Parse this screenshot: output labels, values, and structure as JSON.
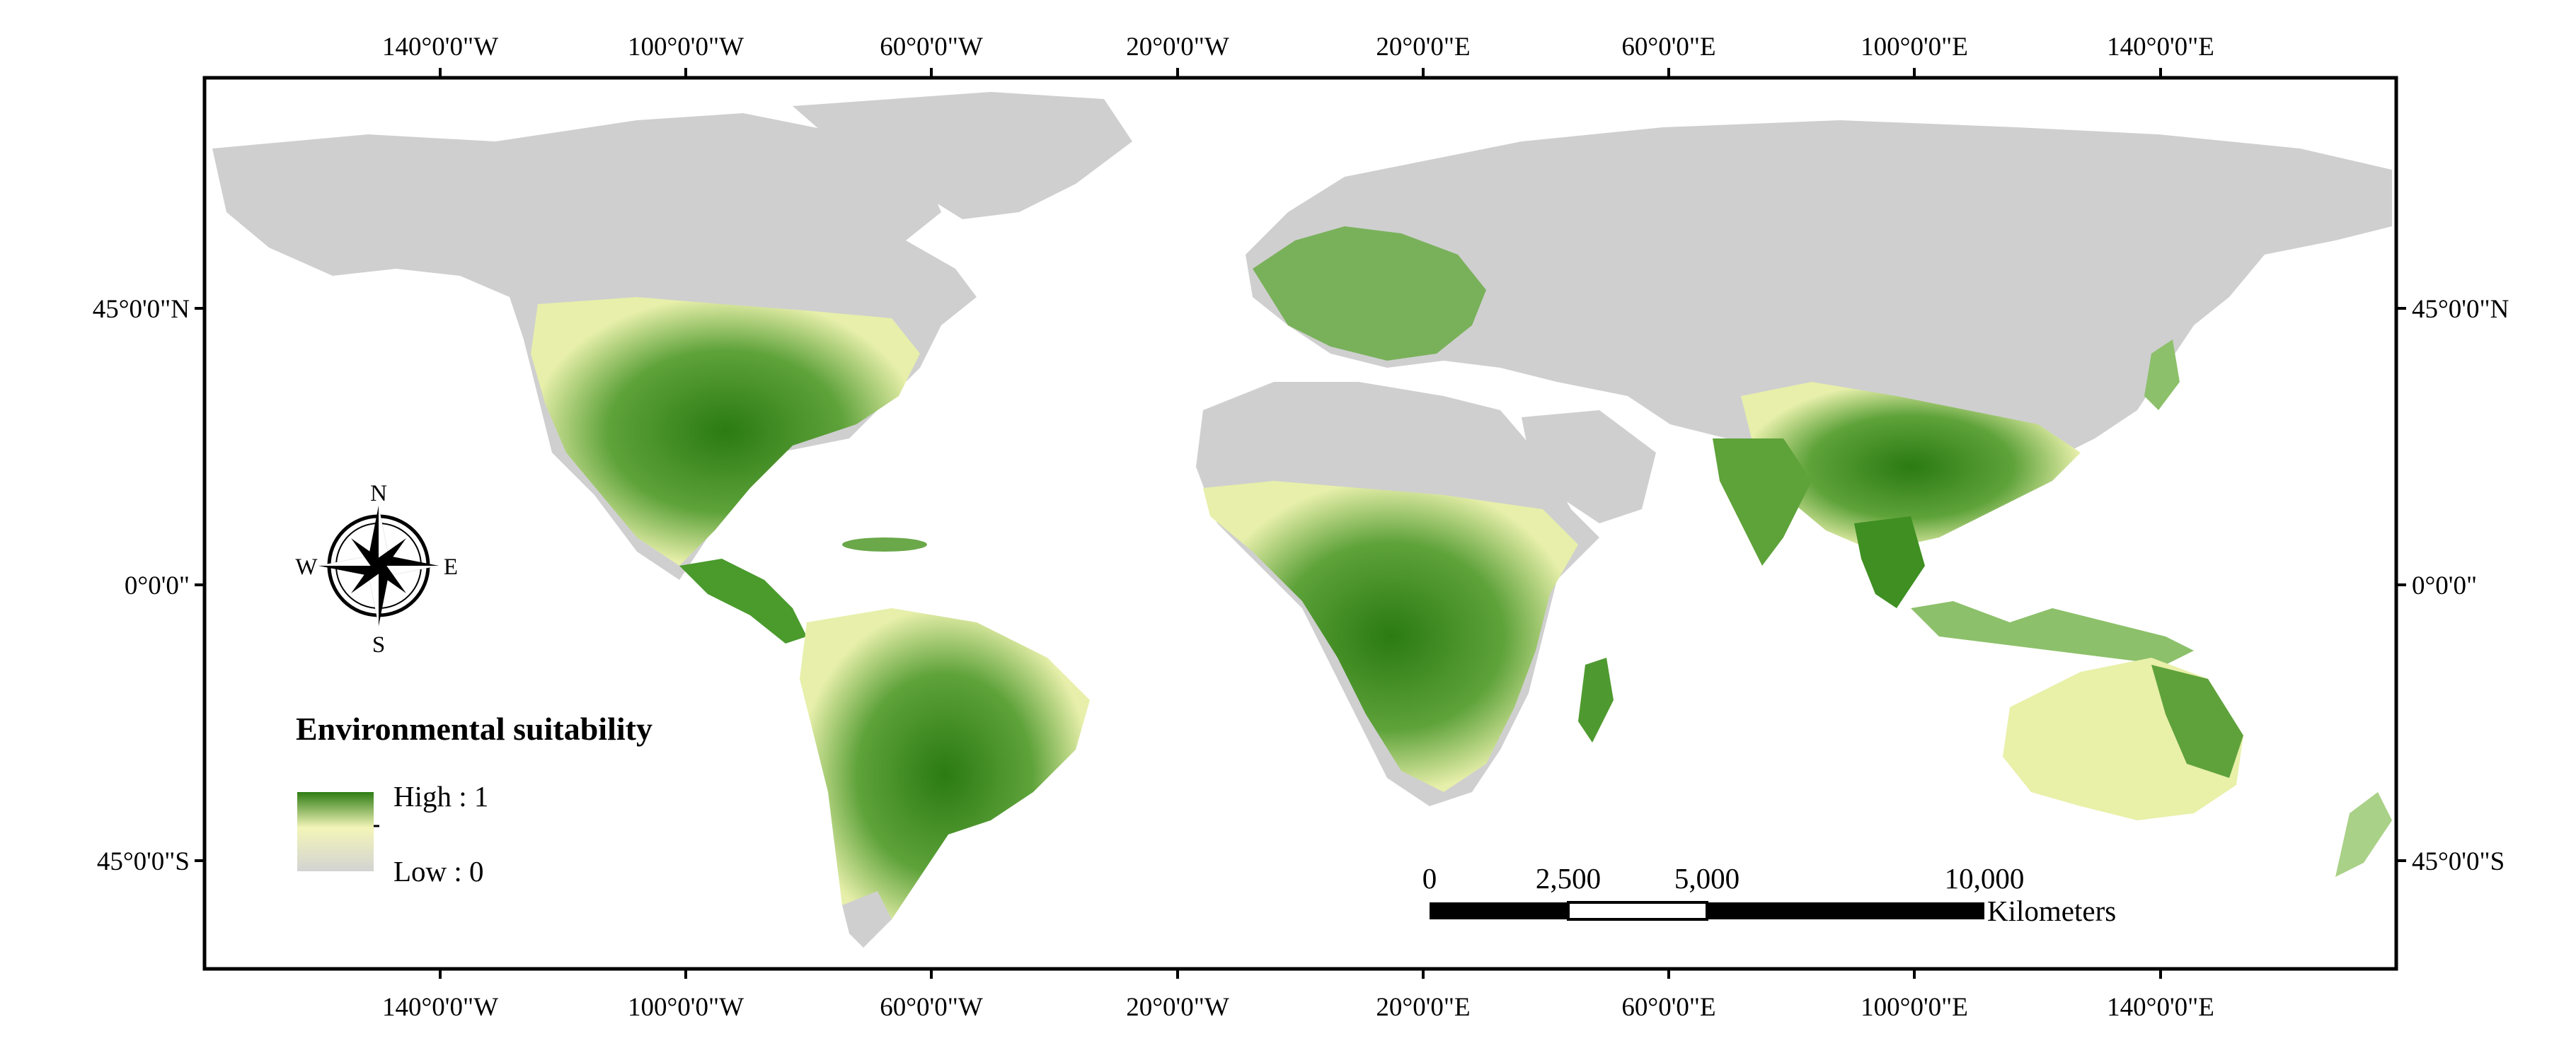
{
  "map": {
    "axes": {
      "top": [
        "140°0'0\"W",
        "100°0'0\"W",
        "60°0'0\"W",
        "20°0'0\"W",
        "20°0'0\"E",
        "60°0'0\"E",
        "100°0'0\"E",
        "140°0'0\"E"
      ],
      "bottom": [
        "140°0'0\"W",
        "100°0'0\"W",
        "60°0'0\"W",
        "20°0'0\"W",
        "20°0'0\"E",
        "60°0'0\"E",
        "100°0'0\"E",
        "140°0'0\"E"
      ],
      "left": [
        "45°0'0\"N",
        "0°0'0\"",
        "45°0'0\"S"
      ],
      "right": [
        "45°0'0\"N",
        "0°0'0\"",
        "45°0'0\"S"
      ]
    },
    "legend": {
      "title": "Environmental suitability",
      "high_label": "High : 1",
      "low_label": "Low : 0",
      "colors": {
        "high": "#2e7d14",
        "mid": "#f3f5b8",
        "low": "#d3d3d3"
      }
    },
    "scale_bar": {
      "ticks": [
        "0",
        "2,500",
        "5,000",
        "10,000"
      ],
      "unit": "Kilometers"
    },
    "compass": {
      "n": "N",
      "s": "S",
      "e": "E",
      "w": "W"
    },
    "colors": {
      "land_base": "#cfcfcf",
      "suitability_high": "#2f7f18",
      "suitability_mid": "#6fb04a",
      "suitability_low": "#eef3b0",
      "frame": "#000000"
    }
  }
}
